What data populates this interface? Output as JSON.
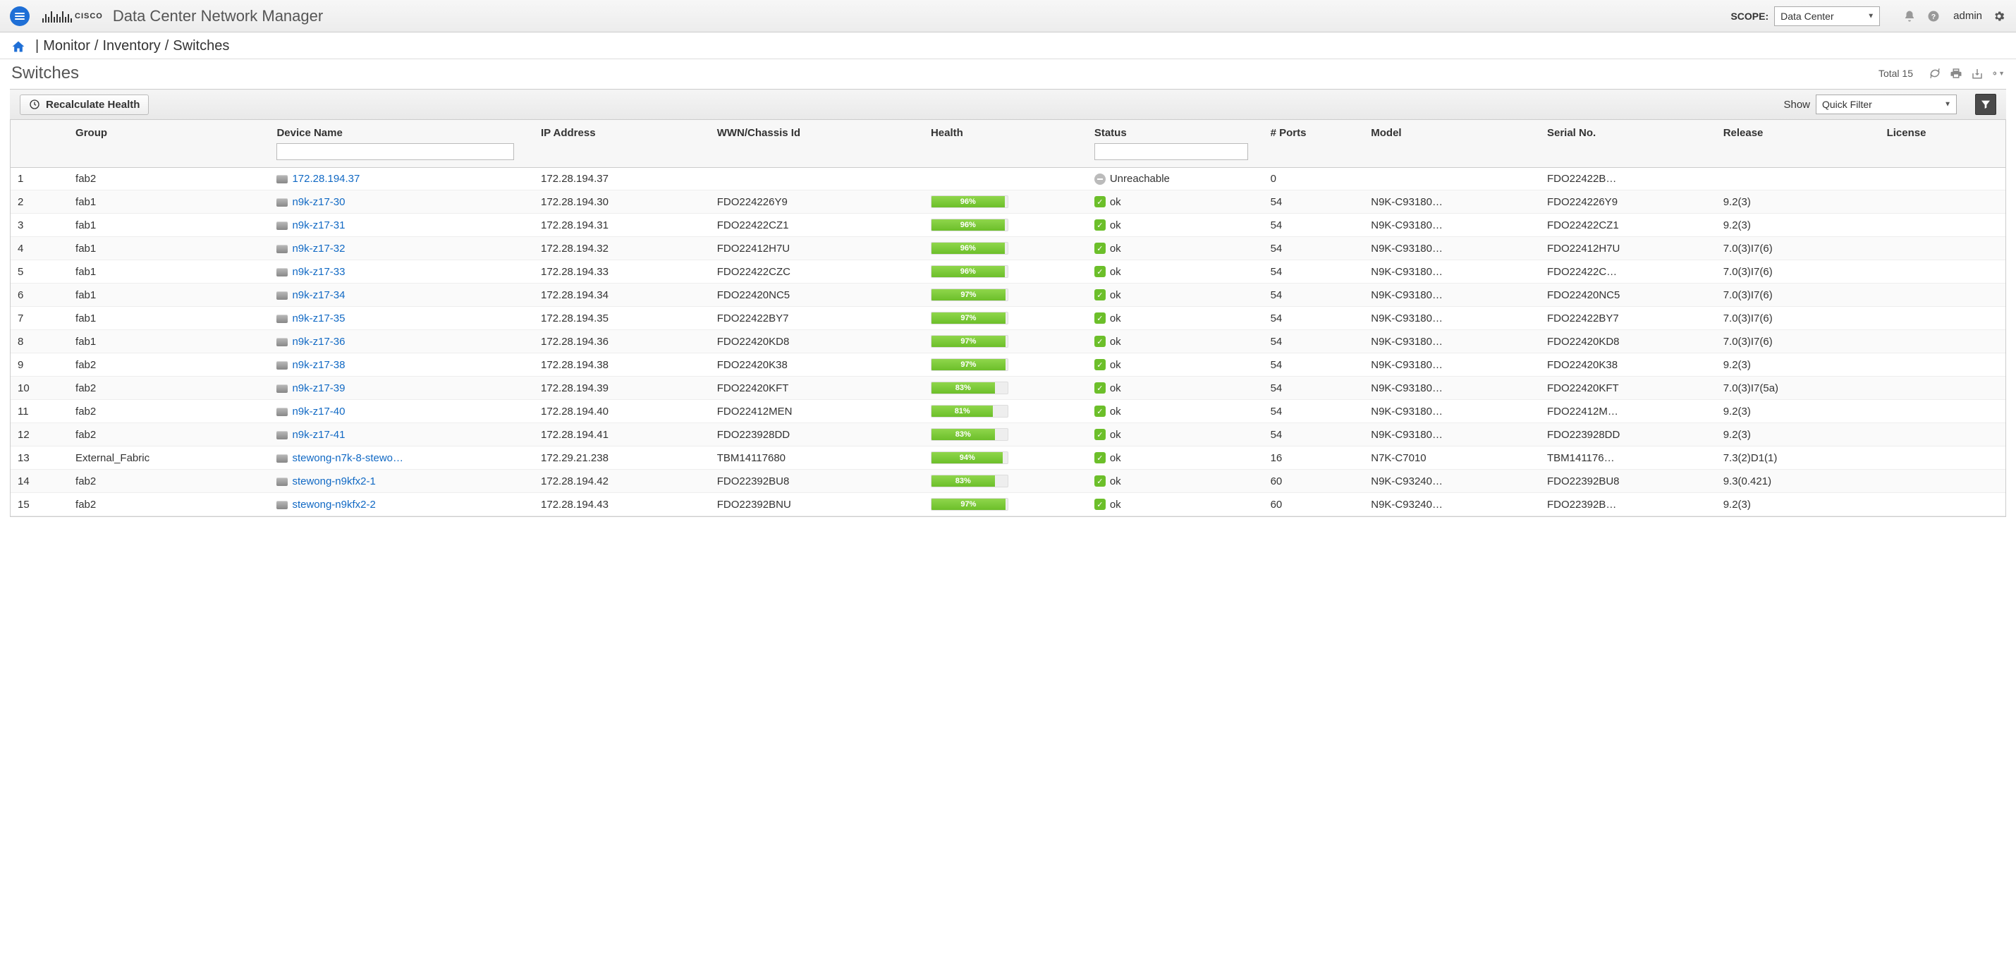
{
  "header": {
    "app_title": "Data Center Network Manager",
    "scope_label": "SCOPE:",
    "scope_value": "Data Center",
    "user": "admin"
  },
  "breadcrumb": {
    "items": [
      "Monitor",
      "Inventory",
      "Switches"
    ]
  },
  "page": {
    "title": "Switches",
    "total_label": "Total 15"
  },
  "toolbar": {
    "recalc_label": "Recalculate Health",
    "show_label": "Show",
    "filter_value": "Quick Filter"
  },
  "columns": [
    "",
    "Group",
    "Device Name",
    "IP Address",
    "WWN/Chassis Id",
    "Health",
    "Status",
    "# Ports",
    "Model",
    "Serial No.",
    "Release",
    "License"
  ],
  "filter_inputs_on": {
    "Device Name": true,
    "Status": true
  },
  "colors": {
    "health_green_top": "#8fd64b",
    "health_green_bot": "#6cbf2a",
    "link": "#1169c4",
    "accent_blue": "#1f6fd6"
  },
  "rows": [
    {
      "n": 1,
      "group": "fab2",
      "device": "172.28.194.37",
      "ip": "172.28.194.37",
      "wwn": "",
      "health": null,
      "status": "Unreachable",
      "ports": "0",
      "model": "",
      "serial": "FDO22422B…",
      "release": "",
      "license": ""
    },
    {
      "n": 2,
      "group": "fab1",
      "device": "n9k-z17-30",
      "ip": "172.28.194.30",
      "wwn": "FDO224226Y9",
      "health": 96,
      "status": "ok",
      "ports": "54",
      "model": "N9K-C93180…",
      "serial": "FDO224226Y9",
      "release": "9.2(3)",
      "license": ""
    },
    {
      "n": 3,
      "group": "fab1",
      "device": "n9k-z17-31",
      "ip": "172.28.194.31",
      "wwn": "FDO22422CZ1",
      "health": 96,
      "status": "ok",
      "ports": "54",
      "model": "N9K-C93180…",
      "serial": "FDO22422CZ1",
      "release": "9.2(3)",
      "license": ""
    },
    {
      "n": 4,
      "group": "fab1",
      "device": "n9k-z17-32",
      "ip": "172.28.194.32",
      "wwn": "FDO22412H7U",
      "health": 96,
      "status": "ok",
      "ports": "54",
      "model": "N9K-C93180…",
      "serial": "FDO22412H7U",
      "release": "7.0(3)I7(6)",
      "license": ""
    },
    {
      "n": 5,
      "group": "fab1",
      "device": "n9k-z17-33",
      "ip": "172.28.194.33",
      "wwn": "FDO22422CZC",
      "health": 96,
      "status": "ok",
      "ports": "54",
      "model": "N9K-C93180…",
      "serial": "FDO22422C…",
      "release": "7.0(3)I7(6)",
      "license": ""
    },
    {
      "n": 6,
      "group": "fab1",
      "device": "n9k-z17-34",
      "ip": "172.28.194.34",
      "wwn": "FDO22420NC5",
      "health": 97,
      "status": "ok",
      "ports": "54",
      "model": "N9K-C93180…",
      "serial": "FDO22420NC5",
      "release": "7.0(3)I7(6)",
      "license": ""
    },
    {
      "n": 7,
      "group": "fab1",
      "device": "n9k-z17-35",
      "ip": "172.28.194.35",
      "wwn": "FDO22422BY7",
      "health": 97,
      "status": "ok",
      "ports": "54",
      "model": "N9K-C93180…",
      "serial": "FDO22422BY7",
      "release": "7.0(3)I7(6)",
      "license": ""
    },
    {
      "n": 8,
      "group": "fab1",
      "device": "n9k-z17-36",
      "ip": "172.28.194.36",
      "wwn": "FDO22420KD8",
      "health": 97,
      "status": "ok",
      "ports": "54",
      "model": "N9K-C93180…",
      "serial": "FDO22420KD8",
      "release": "7.0(3)I7(6)",
      "license": ""
    },
    {
      "n": 9,
      "group": "fab2",
      "device": "n9k-z17-38",
      "ip": "172.28.194.38",
      "wwn": "FDO22420K38",
      "health": 97,
      "status": "ok",
      "ports": "54",
      "model": "N9K-C93180…",
      "serial": "FDO22420K38",
      "release": "9.2(3)",
      "license": ""
    },
    {
      "n": 10,
      "group": "fab2",
      "device": "n9k-z17-39",
      "ip": "172.28.194.39",
      "wwn": "FDO22420KFT",
      "health": 83,
      "status": "ok",
      "ports": "54",
      "model": "N9K-C93180…",
      "serial": "FDO22420KFT",
      "release": "7.0(3)I7(5a)",
      "license": ""
    },
    {
      "n": 11,
      "group": "fab2",
      "device": "n9k-z17-40",
      "ip": "172.28.194.40",
      "wwn": "FDO22412MEN",
      "health": 81,
      "status": "ok",
      "ports": "54",
      "model": "N9K-C93180…",
      "serial": "FDO22412M…",
      "release": "9.2(3)",
      "license": ""
    },
    {
      "n": 12,
      "group": "fab2",
      "device": "n9k-z17-41",
      "ip": "172.28.194.41",
      "wwn": "FDO223928DD",
      "health": 83,
      "status": "ok",
      "ports": "54",
      "model": "N9K-C93180…",
      "serial": "FDO223928DD",
      "release": "9.2(3)",
      "license": ""
    },
    {
      "n": 13,
      "group": "External_Fabric",
      "device": "stewong-n7k-8-stewo…",
      "ip": "172.29.21.238",
      "wwn": "TBM14117680",
      "health": 94,
      "status": "ok",
      "ports": "16",
      "model": "N7K-C7010",
      "serial": "TBM141176…",
      "release": "7.3(2)D1(1)",
      "license": ""
    },
    {
      "n": 14,
      "group": "fab2",
      "device": "stewong-n9kfx2-1",
      "ip": "172.28.194.42",
      "wwn": "FDO22392BU8",
      "health": 83,
      "status": "ok",
      "ports": "60",
      "model": "N9K-C93240…",
      "serial": "FDO22392BU8",
      "release": "9.3(0.421)",
      "license": ""
    },
    {
      "n": 15,
      "group": "fab2",
      "device": "stewong-n9kfx2-2",
      "ip": "172.28.194.43",
      "wwn": "FDO22392BNU",
      "health": 97,
      "status": "ok",
      "ports": "60",
      "model": "N9K-C93240…",
      "serial": "FDO22392B…",
      "release": "9.2(3)",
      "license": ""
    }
  ]
}
